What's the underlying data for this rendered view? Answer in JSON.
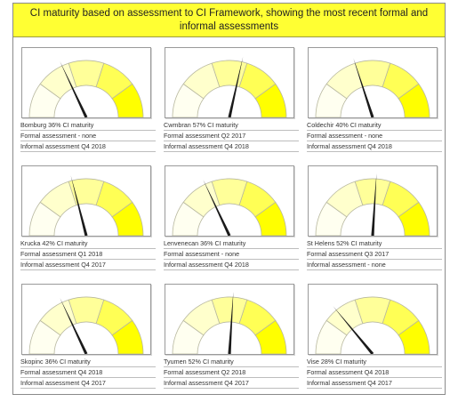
{
  "title": "CI maturity based on assessment to CI Framework, showing the most recent formal and informal assessments",
  "chart_data": {
    "type": "gauge",
    "title": "CI maturity based on assessment to CI Framework, showing the most recent formal and informal assessments",
    "scale": [
      0,
      100
    ],
    "bands": [
      {
        "from": 0,
        "to": 20,
        "color": "#fffff0"
      },
      {
        "from": 20,
        "to": 40,
        "color": "#ffffcc"
      },
      {
        "from": 40,
        "to": 60,
        "color": "#ffff99"
      },
      {
        "from": 60,
        "to": 80,
        "color": "#ffff55"
      },
      {
        "from": 80,
        "to": 100,
        "color": "#ffff00"
      }
    ],
    "gauges": [
      {
        "site": "Bomburg",
        "value": 36,
        "label": "Bomburg 36% CI maturity",
        "formal": "Formal assessment - none",
        "informal": "Informal assessment Q4 2018"
      },
      {
        "site": "Cwmbran",
        "value": 57,
        "label": "Cwmbran 57% CI maturity",
        "formal": "Formal assessment Q2 2017",
        "informal": "Informal assessment Q4 2018"
      },
      {
        "site": "Coldechir",
        "value": 40,
        "label": "Coldechir 40% CI maturity",
        "formal": "Formal assessment - none",
        "informal": "Informal assessment Q4 2018"
      },
      {
        "site": "Krucka",
        "value": 42,
        "label": "Krucka 42% CI maturity",
        "formal": "Formal assessment Q1 2018",
        "informal": "Informal assessment Q4 2017"
      },
      {
        "site": "Lenvenecan",
        "value": 36,
        "label": "Lenvenecan 36% CI maturity",
        "formal": "Formal assessment - none",
        "informal": "Informal assessment Q4 2018"
      },
      {
        "site": "St Helens",
        "value": 52,
        "label": "St Helens 52% CI maturity",
        "formal": "Formal assessment Q3 2017",
        "informal": "Informal assessment - none"
      },
      {
        "site": "Skopinc",
        "value": 36,
        "label": "Skopinc 36% CI maturity",
        "formal": "Formal assessment Q4 2018",
        "informal": "Informal assessment Q4 2017"
      },
      {
        "site": "Tyumen",
        "value": 52,
        "label": "Tyumen 52% CI maturity",
        "formal": "Formal assessment Q2 2018",
        "informal": "Informal assessment Q4 2017"
      },
      {
        "site": "Vise",
        "value": 28,
        "label": "Vise 28% CI maturity",
        "formal": "Formal assessment Q4 2018",
        "informal": "Informal assessment Q4 2017"
      }
    ]
  }
}
